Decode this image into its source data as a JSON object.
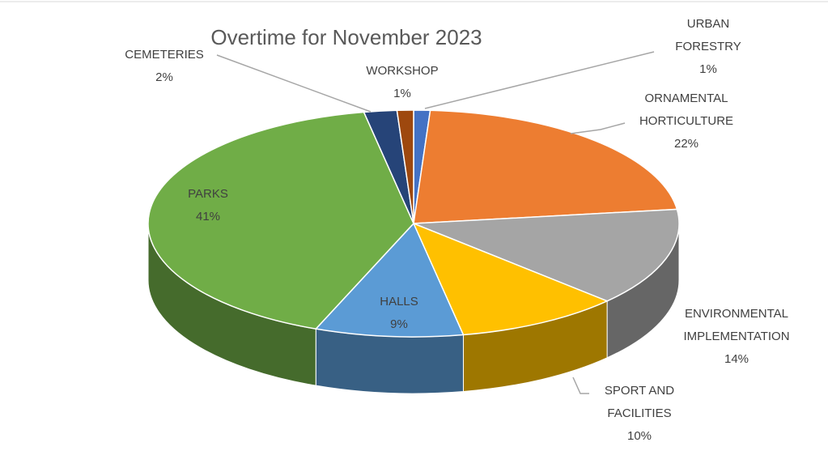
{
  "chart_data": {
    "type": "pie3d",
    "title": "Overtime for November 2023",
    "categories": [
      "URBAN FORESTRY",
      "ORNAMENTAL HORTICULTURE",
      "ENVIRONMENTAL IMPLEMENTATION",
      "SPORT AND FACILITIES",
      "HALLS",
      "PARKS",
      "CEMETERIES",
      "WORKSHOP"
    ],
    "values": [
      1,
      22,
      14,
      10,
      9,
      41,
      2,
      1
    ],
    "value_labels": [
      "1%",
      "22%",
      "14%",
      "10%",
      "9%",
      "41%",
      "2%",
      "1%"
    ],
    "colors": [
      "#4472c4",
      "#ed7d31",
      "#a5a5a5",
      "#ffc000",
      "#5b9bd5",
      "#70ad47",
      "#264478",
      "#9e480e"
    ]
  }
}
